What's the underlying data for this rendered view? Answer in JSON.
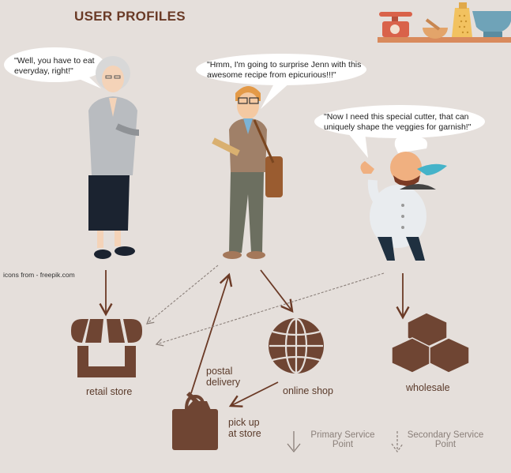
{
  "title": "USER PROFILES",
  "credit": "icons  from  - freepik.com",
  "personas": [
    {
      "name": "elderly-woman",
      "quote": "\"Well, you have to eat everyday, right!\""
    },
    {
      "name": "young-man",
      "quote": "\"Hmm, I'm going to surprise Jenn with this awesome recipe from epicurious!!!\""
    },
    {
      "name": "chef",
      "quote": "\"Now I need this special cutter, that can uniquely shape the veggies for garnish!\""
    }
  ],
  "channels": {
    "retail_store": "retail store",
    "online_shop": "online shop",
    "wholesale": "wholesale",
    "pick_up": "pick up\nat store",
    "postal_delivery": "postal\ndelivery"
  },
  "legend": {
    "primary": "Primary Service\nPoint",
    "secondary": "Secondary Service\nPoint"
  },
  "colors": {
    "background": "#e5dfdb",
    "accent_brown": "#6b3a26",
    "icon_brown": "#6f4533",
    "legend_gray": "#8a7f79"
  }
}
